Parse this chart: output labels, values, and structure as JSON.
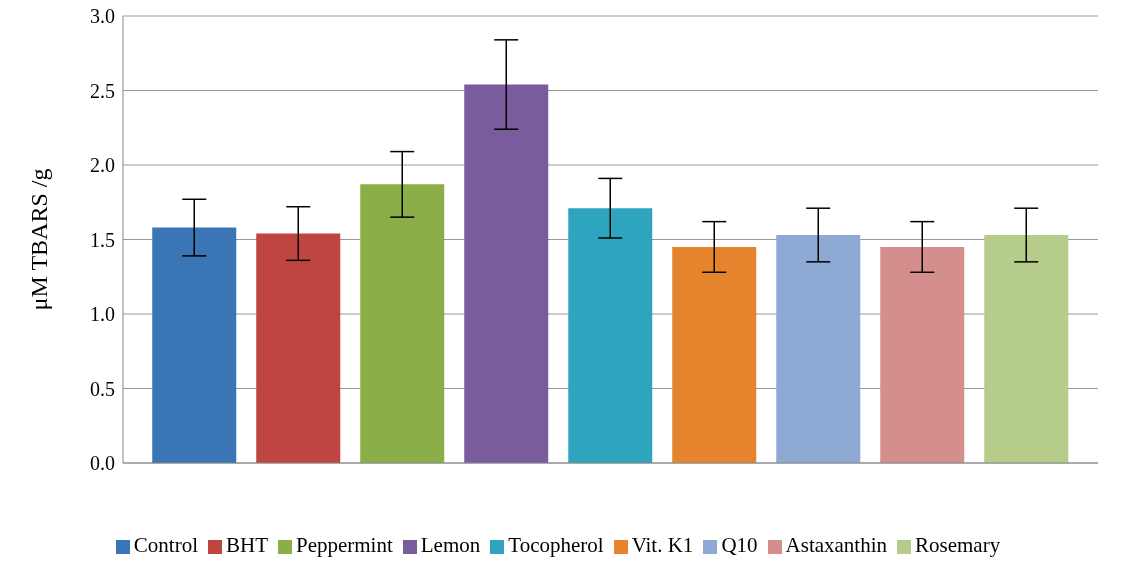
{
  "chart_data": {
    "type": "bar",
    "ylabel": "μM TBARS /g",
    "categories": [
      null
    ],
    "ylim": [
      0,
      3
    ],
    "yticks": [
      {
        "value": 0,
        "label": "0.0"
      },
      {
        "value": 0.5,
        "label": "0.5"
      },
      {
        "value": 1,
        "label": "1.0"
      },
      {
        "value": 1.5,
        "label": "1.5"
      },
      {
        "value": 2,
        "label": "2.0"
      },
      {
        "value": 2.5,
        "label": "2.5"
      },
      {
        "value": 3,
        "label": "3.0"
      }
    ],
    "grid": "y",
    "legend": "bottom",
    "series": [
      {
        "name": "Control",
        "color": "#3a75b5",
        "values": [
          1.58
        ],
        "errors": [
          0.19
        ]
      },
      {
        "name": "BHT",
        "color": "#bf4540",
        "values": [
          1.54
        ],
        "errors": [
          0.18
        ]
      },
      {
        "name": "Peppermint",
        "color": "#8cae48",
        "values": [
          1.87
        ],
        "errors": [
          0.22
        ]
      },
      {
        "name": "Lemon",
        "color": "#7a5b9c",
        "values": [
          2.54
        ],
        "errors": [
          0.3
        ]
      },
      {
        "name": "Tocopherol",
        "color": "#2fa4bf",
        "values": [
          1.71
        ],
        "errors": [
          0.2
        ]
      },
      {
        "name": "Vit. K1",
        "color": "#e5842c",
        "values": [
          1.45
        ],
        "errors": [
          0.17
        ]
      },
      {
        "name": "Q10",
        "color": "#8ea9d3",
        "values": [
          1.53
        ],
        "errors": [
          0.18
        ]
      },
      {
        "name": "Astaxanthin",
        "color": "#d48e8c",
        "values": [
          1.45
        ],
        "errors": [
          0.17
        ]
      },
      {
        "name": "Rosemary",
        "color": "#b5cc8a",
        "values": [
          1.53
        ],
        "errors": [
          0.18
        ]
      }
    ]
  }
}
